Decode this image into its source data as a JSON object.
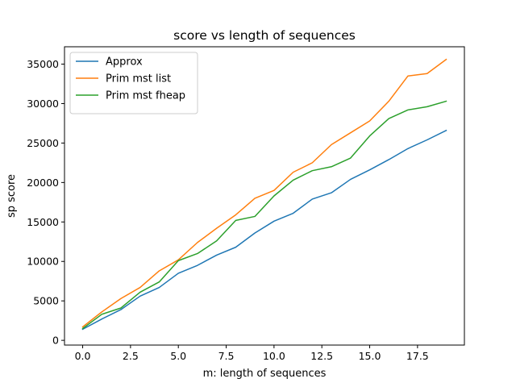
{
  "chart_data": {
    "type": "line",
    "title": "score vs length of sequences",
    "xlabel": "m: length of sequences",
    "ylabel": "sp score",
    "xlim": [
      -0.95,
      19.95
    ],
    "ylim": [
      -600,
      37200
    ],
    "x_ticks": [
      0.0,
      2.5,
      5.0,
      7.5,
      10.0,
      12.5,
      15.0,
      17.5
    ],
    "x_tick_labels": [
      "0.0",
      "2.5",
      "5.0",
      "7.5",
      "10.0",
      "12.5",
      "15.0",
      "17.5"
    ],
    "y_ticks": [
      0,
      5000,
      10000,
      15000,
      20000,
      25000,
      30000,
      35000
    ],
    "y_tick_labels": [
      "0",
      "5000",
      "10000",
      "15000",
      "20000",
      "25000",
      "30000",
      "35000"
    ],
    "grid": false,
    "legend_position": "top-left",
    "x": [
      0,
      1,
      2,
      3,
      4,
      5,
      6,
      7,
      8,
      9,
      10,
      11,
      12,
      13,
      14,
      15,
      16,
      17,
      18,
      19
    ],
    "series": [
      {
        "name": "Approx",
        "color": "#1f77b4",
        "values": [
          1400,
          2700,
          3900,
          5600,
          6700,
          8500,
          9500,
          10800,
          11800,
          13600,
          15100,
          16100,
          17900,
          18700,
          20400,
          21600,
          22900,
          24300,
          25400,
          26600
        ]
      },
      {
        "name": "Prim mst list",
        "color": "#ff7f0e",
        "values": [
          1700,
          3600,
          5300,
          6700,
          8800,
          10200,
          12400,
          14200,
          15900,
          18000,
          19000,
          21300,
          22500,
          24800,
          26300,
          27800,
          30300,
          33500,
          33800,
          35600
        ]
      },
      {
        "name": "Prim mst fheap",
        "color": "#2ca02c",
        "values": [
          1500,
          3300,
          4100,
          6100,
          7400,
          10100,
          11000,
          12600,
          15200,
          15700,
          18300,
          20300,
          21500,
          22000,
          23100,
          25900,
          28100,
          29200,
          29600,
          30300
        ]
      }
    ]
  }
}
